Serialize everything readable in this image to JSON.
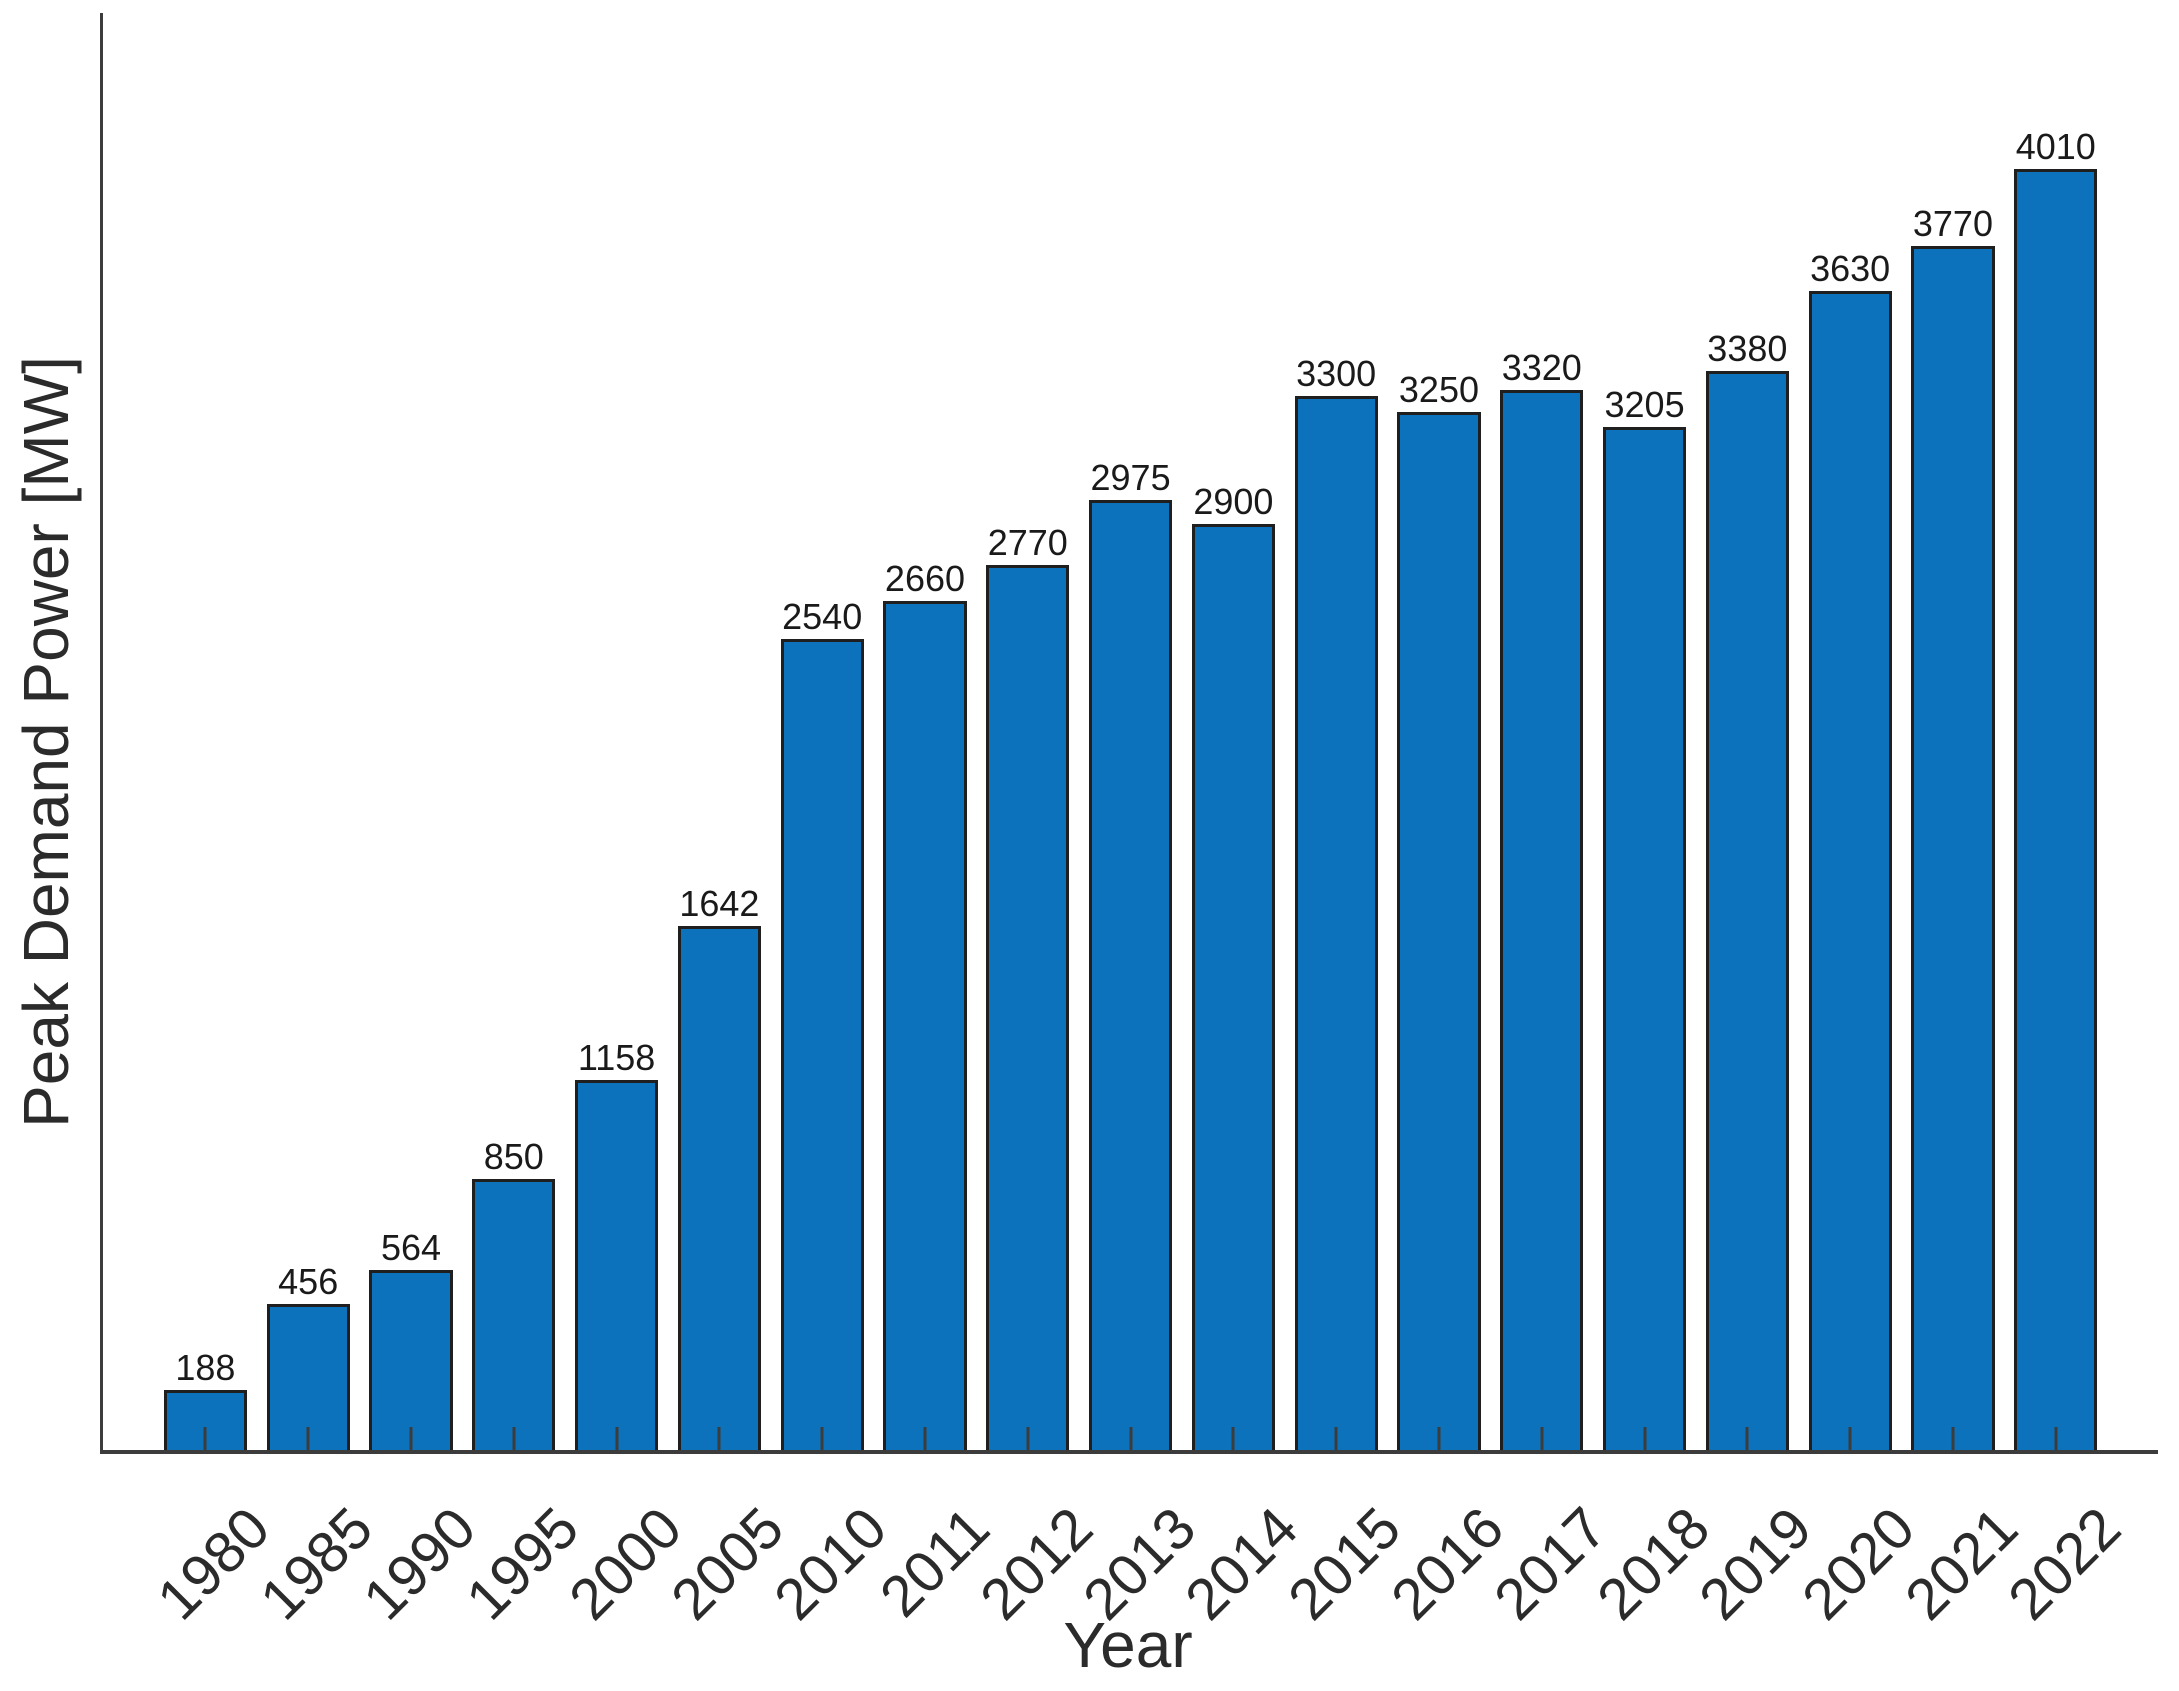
{
  "chart_data": {
    "type": "bar",
    "title": "",
    "xlabel": "Year",
    "ylabel": "Peak Demand Power [MW]",
    "categories": [
      "1980",
      "1985",
      "1990",
      "1995",
      "2000",
      "2005",
      "2010",
      "2011",
      "2012",
      "2013",
      "2014",
      "2015",
      "2016",
      "2017",
      "2018",
      "2019",
      "2020",
      "2021",
      "2022"
    ],
    "values": [
      188,
      456,
      564,
      850,
      1158,
      1642,
      2540,
      2660,
      2770,
      2975,
      2900,
      3300,
      3250,
      3320,
      3205,
      3380,
      3630,
      3770,
      4010
    ],
    "value_labels_shown": true,
    "xtick_label_rotation_deg": 45,
    "ylim": [
      0,
      4500
    ],
    "grid": false,
    "legend": "none",
    "bar_fill_color": "#0d72bc",
    "bar_edge_color": "#1f1f1f",
    "axis_color": "#3c3c3c",
    "label_text_color": "#1a1a1a"
  }
}
